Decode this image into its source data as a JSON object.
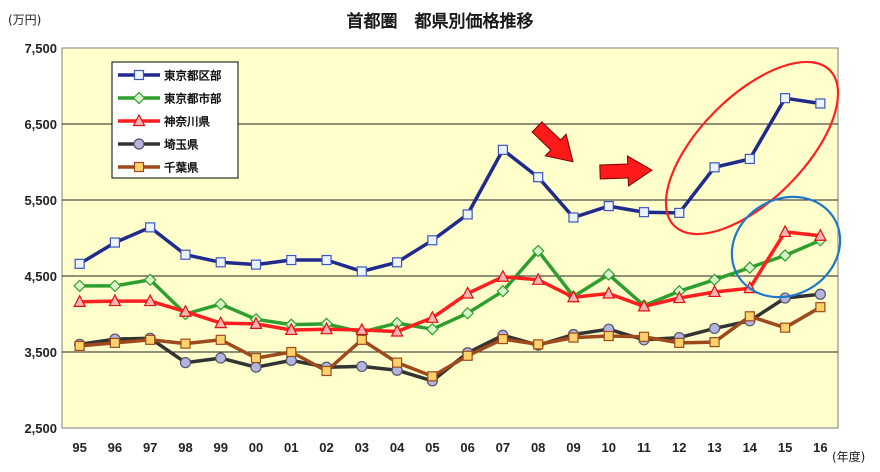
{
  "chart_data": {
    "type": "line",
    "title": "首都圏　都県別価格推移",
    "ylabel": "(万円)",
    "xlabel": "(年度)",
    "categories": [
      "95",
      "96",
      "97",
      "98",
      "99",
      "00",
      "01",
      "02",
      "03",
      "04",
      "05",
      "06",
      "07",
      "08",
      "09",
      "10",
      "11",
      "12",
      "13",
      "14",
      "15",
      "16"
    ],
    "ylim": [
      2500,
      7500
    ],
    "yticks": [
      2500,
      3500,
      4500,
      5500,
      6500,
      7500
    ],
    "ytick_labels": [
      "2,500",
      "3,500",
      "4,500",
      "5,500",
      "6,500",
      "7,500"
    ],
    "grid": true,
    "legend_position": "top-left",
    "plot_background": "#FFFFCC",
    "series": [
      {
        "name": "東京都区部",
        "color": "#1F2A8C",
        "marker": "square",
        "marker_fill": "#EEF4FF",
        "marker_stroke": "#3A56C0",
        "values": [
          4660,
          4940,
          5140,
          4780,
          4680,
          4650,
          4710,
          4710,
          4560,
          4680,
          4970,
          5310,
          6160,
          5800,
          5270,
          5420,
          5340,
          5330,
          5930,
          6040,
          6840,
          6770
        ]
      },
      {
        "name": "東京都市部",
        "color": "#2E9E2E",
        "marker": "diamond",
        "marker_fill": "#D8F5C8",
        "marker_stroke": "#2E9E2E",
        "values": [
          4370,
          4370,
          4450,
          4000,
          4130,
          3930,
          3860,
          3870,
          3760,
          3880,
          3800,
          4010,
          4300,
          4830,
          4230,
          4520,
          4110,
          4300,
          4450,
          4610,
          4770,
          4970
        ]
      },
      {
        "name": "神奈川県",
        "color": "#FF1F1F",
        "marker": "triangle",
        "marker_fill": "#FFB3B3",
        "marker_stroke": "#E01010",
        "values": [
          4160,
          4170,
          4170,
          4030,
          3880,
          3870,
          3790,
          3800,
          3790,
          3770,
          3950,
          4270,
          4490,
          4450,
          4220,
          4270,
          4100,
          4210,
          4290,
          4340,
          5080,
          5030
        ]
      },
      {
        "name": "埼玉県",
        "color": "#333333",
        "marker": "circle",
        "marker_fill": "#B4B4E0",
        "marker_stroke": "#555566",
        "values": [
          3600,
          3670,
          3680,
          3360,
          3420,
          3300,
          3390,
          3300,
          3310,
          3260,
          3120,
          3490,
          3720,
          3590,
          3730,
          3800,
          3660,
          3690,
          3810,
          3910,
          4210,
          4260
        ]
      },
      {
        "name": "千葉県",
        "color": "#9E4A1C",
        "marker": "square",
        "marker_fill": "#FFD36B",
        "marker_stroke": "#9E4A1C",
        "values": [
          3580,
          3620,
          3660,
          3610,
          3660,
          3420,
          3500,
          3250,
          3660,
          3360,
          3180,
          3450,
          3670,
          3600,
          3690,
          3710,
          3700,
          3620,
          3630,
          3970,
          3820,
          4090
        ]
      }
    ]
  },
  "annotations": {
    "arrow_color": "#FF1A1A",
    "red_ellipse_color": "#FF2020",
    "blue_ellipse_color": "#1E78C8"
  }
}
